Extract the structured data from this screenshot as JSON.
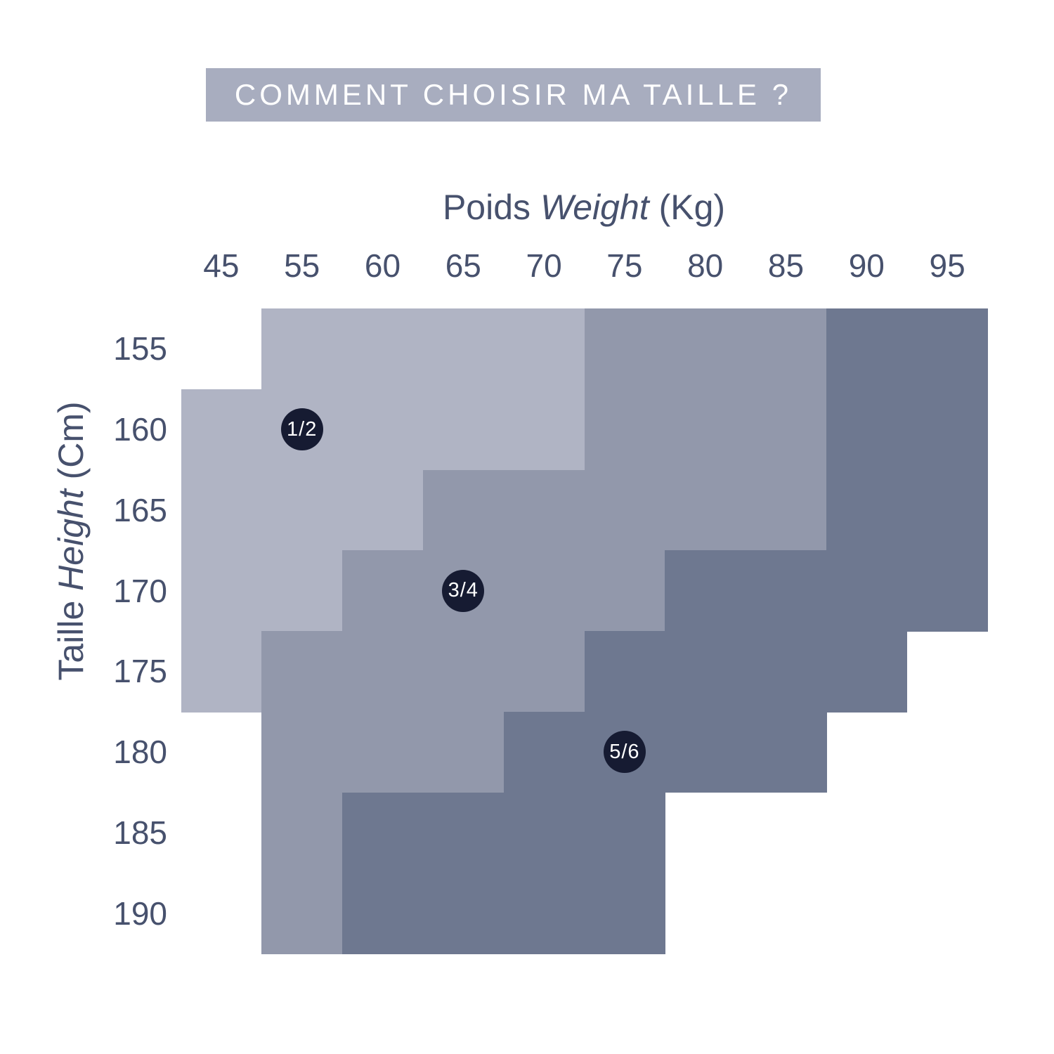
{
  "title_banner": {
    "text": "COMMENT CHOISIR MA TAILLE ?",
    "bg_color": "#a8adbf",
    "text_color": "#ffffff"
  },
  "axes": {
    "weight": {
      "label_fr": "Poids",
      "label_en": "Weight",
      "unit": "(Kg)"
    },
    "height": {
      "label_fr": "Taille",
      "label_en": "Height",
      "unit": "(Cm)"
    }
  },
  "colors": {
    "text": "#47516d",
    "background": "#ffffff"
  },
  "chart_data": {
    "type": "heatmap",
    "title": "COMMENT CHOISIR MA TAILLE ?",
    "xlabel": "Poids Weight (Kg)",
    "ylabel": "Taille Height (Cm)",
    "x_categories": [
      "45",
      "55",
      "60",
      "65",
      "70",
      "75",
      "80",
      "85",
      "90",
      "95"
    ],
    "y_categories": [
      "155",
      "160",
      "165",
      "170",
      "175",
      "180",
      "185",
      "190"
    ],
    "legend_position": "badges-inside-regions",
    "grid": false,
    "cells": [
      [
        null,
        "1/2",
        "1/2",
        "1/2",
        "1/2",
        "3/4",
        "3/4",
        "3/4",
        "5/6",
        "5/6"
      ],
      [
        "1/2",
        "1/2",
        "1/2",
        "1/2",
        "1/2",
        "3/4",
        "3/4",
        "3/4",
        "5/6",
        "5/6"
      ],
      [
        "1/2",
        "1/2",
        "1/2",
        "3/4",
        "3/4",
        "3/4",
        "3/4",
        "3/4",
        "5/6",
        "5/6"
      ],
      [
        "1/2",
        "1/2",
        "3/4",
        "3/4",
        "3/4",
        "3/4",
        "5/6",
        "5/6",
        "5/6",
        "5/6"
      ],
      [
        "1/2",
        "3/4",
        "3/4",
        "3/4",
        "3/4",
        "5/6",
        "5/6",
        "5/6",
        "5/6",
        null
      ],
      [
        null,
        "3/4",
        "3/4",
        "3/4",
        "5/6",
        "5/6",
        "5/6",
        "5/6",
        null,
        null
      ],
      [
        null,
        "3/4",
        "5/6",
        "5/6",
        "5/6",
        "5/6",
        null,
        null,
        null,
        null
      ],
      [
        null,
        "3/4",
        "5/6",
        "5/6",
        "5/6",
        "5/6",
        null,
        null,
        null,
        null
      ]
    ],
    "sizes": [
      {
        "label": "1/2",
        "color": "#b0b4c4"
      },
      {
        "label": "3/4",
        "color": "#9298ab"
      },
      {
        "label": "5/6",
        "color": "#6e7890"
      }
    ],
    "badges": [
      {
        "label": "1/2",
        "x_cat": "55",
        "y_cat": "160"
      },
      {
        "label": "3/4",
        "x_cat": "65",
        "y_cat": "170"
      },
      {
        "label": "5/6",
        "x_cat": "75",
        "y_cat": "180"
      }
    ],
    "badge_color": "#161b32",
    "badge_text_color": "#ffffff"
  }
}
